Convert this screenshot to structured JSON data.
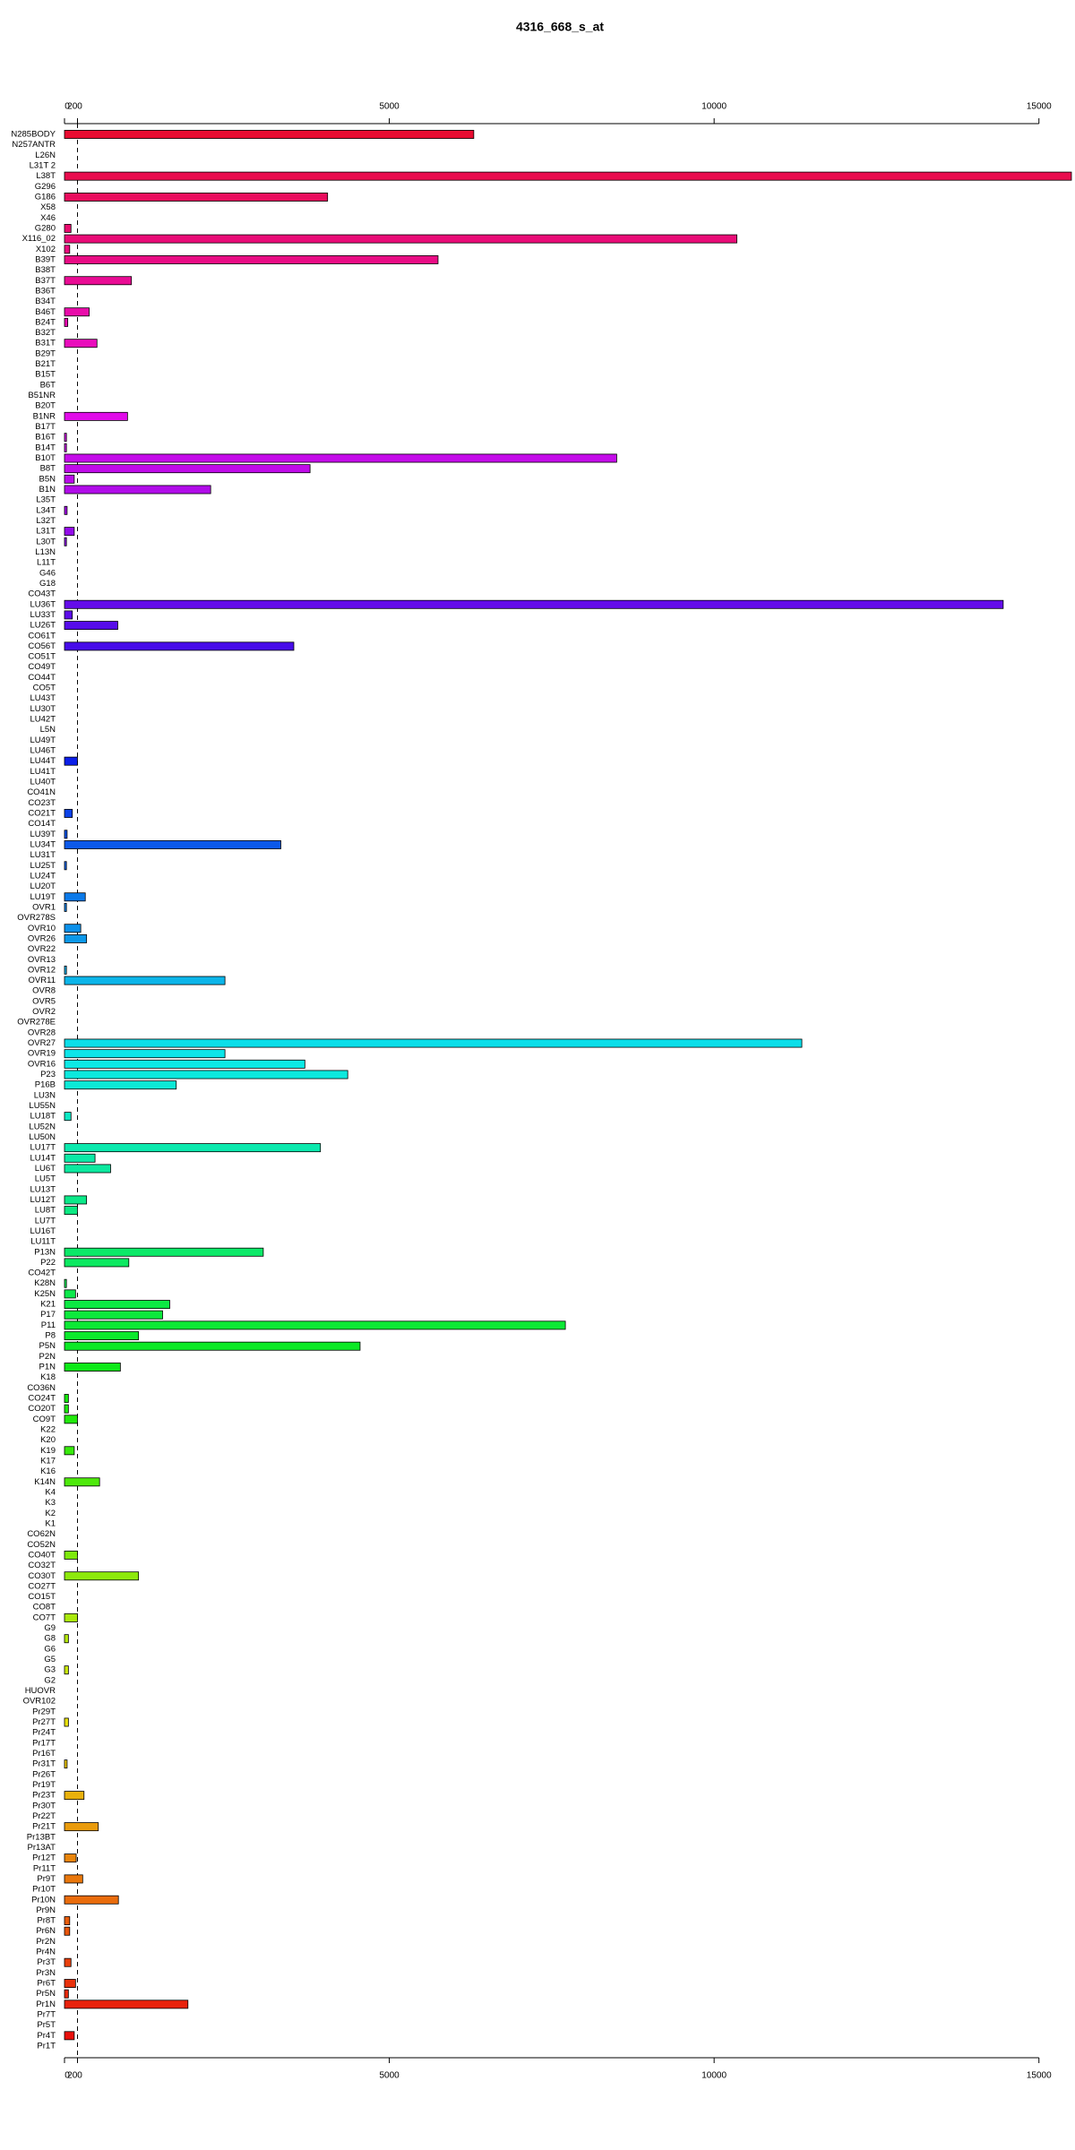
{
  "chart_data": {
    "type": "barh",
    "title": "4316_668_s_at",
    "categories": [
      "N285BODY",
      "N257ANTR",
      "L26N",
      "L31T 2",
      "L38T",
      "G296",
      "G186",
      "X58",
      "X46",
      "G280",
      "X116_02",
      "X102",
      "B39T",
      "B38T",
      "B37T",
      "B36T",
      "B34T",
      "B46T",
      "B24T",
      "B32T",
      "B31T",
      "B29T",
      "B21T",
      "B15T",
      "B6T",
      "B51NR",
      "B20T",
      "B1NR",
      "B17T",
      "B16T",
      "B14T",
      "B10T",
      "B8T",
      "B5N",
      "B1N",
      "L35T",
      "L34T",
      "L32T",
      "L31T",
      "L30T",
      "L13N",
      "L11T",
      "G46",
      "G18",
      "CO43T",
      "LU36T",
      "LU33T",
      "LU26T",
      "CO61T",
      "CO56T",
      "CO51T",
      "CO49T",
      "CO44T",
      "CO5T",
      "LU43T",
      "LU30T",
      "LU42T",
      "L5N",
      "LU49T",
      "LU46T",
      "LU44T",
      "LU41T",
      "LU40T",
      "CO41N",
      "CO23T",
      "CO21T",
      "CO14T",
      "LU39T",
      "LU34T",
      "LU31T",
      "LU25T",
      "LU24T",
      "LU20T",
      "LU19T",
      "OVR1",
      "OVR278S",
      "OVR10",
      "OVR26",
      "OVR22",
      "OVR13",
      "OVR12",
      "OVR11",
      "OVR8",
      "OVR5",
      "OVR2",
      "OVR278E",
      "OVR28",
      "OVR27",
      "OVR19",
      "OVR16",
      "P23",
      "P16B",
      "LU3N",
      "LU55N",
      "LU18T",
      "LU52N",
      "LU50N",
      "LU17T",
      "LU14T",
      "LU6T",
      "LU5T",
      "LU13T",
      "LU12T",
      "LU8T",
      "LU7T",
      "LU16T",
      "LU11T",
      "P13N",
      "P22",
      "CO42T",
      "K28N",
      "K25N",
      "K21",
      "P17",
      "P11",
      "P8",
      "P5N",
      "P2N",
      "P1N",
      "K18",
      "CO36N",
      "CO24T",
      "CO20T",
      "CO9T",
      "K22",
      "K20",
      "K19",
      "K17",
      "K16",
      "K14N",
      "K4",
      "K3",
      "K2",
      "K1",
      "CO62N",
      "CO52N",
      "CO40T",
      "CO32T",
      "CO30T",
      "CO27T",
      "CO15T",
      "CO8T",
      "CO7T",
      "G9",
      "G8",
      "G6",
      "G5",
      "G3",
      "G2",
      "HUOVR",
      "OVR102",
      "Pr29T",
      "Pr27T",
      "Pr24T",
      "Pr17T",
      "Pr16T",
      "Pr31T",
      "Pr26T",
      "Pr19T",
      "Pr23T",
      "Pr30T",
      "Pr22T",
      "Pr21T",
      "Pr13BT",
      "Pr13AT",
      "Pr12T",
      "Pr11T",
      "Pr9T",
      "Pr10T",
      "Pr10N",
      "Pr9N",
      "Pr8T",
      "Pr6N",
      "Pr2N",
      "Pr4N",
      "Pr3T",
      "Pr3N",
      "Pr6T",
      "Pr5N",
      "Pr1N",
      "Pr7T",
      "Pr5T",
      "Pr4T",
      "Pr1T"
    ],
    "values": [
      6300,
      0,
      0,
      0,
      15500,
      0,
      4050,
      0,
      0,
      100,
      10350,
      80,
      5750,
      0,
      1030,
      0,
      0,
      380,
      50,
      0,
      500,
      0,
      0,
      0,
      0,
      0,
      0,
      970,
      0,
      30,
      30,
      8500,
      3780,
      150,
      2250,
      0,
      40,
      0,
      150,
      30,
      0,
      0,
      0,
      0,
      0,
      14450,
      120,
      820,
      0,
      3530,
      0,
      0,
      0,
      0,
      0,
      0,
      0,
      0,
      0,
      0,
      200,
      0,
      0,
      0,
      0,
      120,
      0,
      40,
      3330,
      0,
      30,
      0,
      0,
      320,
      30,
      0,
      250,
      340,
      0,
      0,
      30,
      2470,
      0,
      0,
      0,
      0,
      0,
      11350,
      2470,
      3700,
      4360,
      1720,
      0,
      0,
      100,
      0,
      0,
      3940,
      470,
      710,
      0,
      0,
      340,
      200,
      0,
      0,
      0,
      3060,
      990,
      0,
      30,
      170,
      1620,
      1510,
      7710,
      1140,
      4550,
      0,
      860,
      0,
      0,
      60,
      60,
      200,
      0,
      0,
      150,
      0,
      0,
      540,
      0,
      0,
      0,
      0,
      0,
      0,
      200,
      0,
      1140,
      0,
      0,
      0,
      200,
      0,
      60,
      0,
      0,
      60,
      0,
      0,
      0,
      0,
      60,
      0,
      0,
      0,
      40,
      0,
      0,
      300,
      0,
      0,
      520,
      0,
      0,
      180,
      0,
      280,
      0,
      830,
      0,
      80,
      80,
      0,
      0,
      100,
      0,
      170,
      60,
      1900,
      0,
      0,
      150,
      0
    ],
    "colors": [
      "hsl(350,90%,48%)",
      "hsl(348,90%,48%)",
      "hsl(346,90%,48%)",
      "hsl(344,90%,48%)",
      "hsl(342,90%,48%)",
      "hsl(340,90%,48%)",
      "hsl(338,90%,48%)",
      "hsl(337,90%,48%)",
      "hsl(335,90%,48%)",
      "hsl(333,90%,48%)",
      "hsl(331,90%,48%)",
      "hsl(329,90%,48%)",
      "hsl(327,90%,48%)",
      "hsl(325,90%,48%)",
      "hsl(323,90%,48%)",
      "hsl(321,90%,48%)",
      "hsl(319,90%,48%)",
      "hsl(317,90%,48%)",
      "hsl(315,90%,48%)",
      "hsl(314,90%,48%)",
      "hsl(312,90%,48%)",
      "hsl(310,90%,48%)",
      "hsl(308,90%,48%)",
      "hsl(306,90%,48%)",
      "hsl(304,90%,48%)",
      "hsl(302,90%,48%)",
      "hsl(300,90%,48%)",
      "hsl(298,90%,48%)",
      "hsl(296,90%,48%)",
      "hsl(294,90%,48%)",
      "hsl(292,90%,48%)",
      "hsl(290,90%,48%)",
      "hsl(289,90%,48%)",
      "hsl(287,90%,48%)",
      "hsl(285,90%,48%)",
      "hsl(283,90%,48%)",
      "hsl(281,90%,48%)",
      "hsl(279,90%,48%)",
      "hsl(277,90%,48%)",
      "hsl(275,90%,48%)",
      "hsl(273,90%,48%)",
      "hsl(271,90%,48%)",
      "hsl(269,90%,48%)",
      "hsl(267,90%,48%)",
      "hsl(266,90%,48%)",
      "hsl(264,90%,48%)",
      "hsl(262,90%,48%)",
      "hsl(260,90%,48%)",
      "hsl(258,90%,48%)",
      "hsl(256,90%,48%)",
      "hsl(254,90%,48%)",
      "hsl(252,90%,48%)",
      "hsl(250,90%,48%)",
      "hsl(248,90%,48%)",
      "hsl(246,90%,48%)",
      "hsl(244,90%,48%)",
      "hsl(242,90%,48%)",
      "hsl(241,90%,48%)",
      "hsl(239,90%,48%)",
      "hsl(237,90%,48%)",
      "hsl(235,90%,48%)",
      "hsl(233,90%,48%)",
      "hsl(231,90%,48%)",
      "hsl(229,90%,48%)",
      "hsl(227,90%,48%)",
      "hsl(225,90%,48%)",
      "hsl(223,90%,48%)",
      "hsl(221,90%,48%)",
      "hsl(219,90%,48%)",
      "hsl(218,90%,48%)",
      "hsl(216,90%,48%)",
      "hsl(214,90%,48%)",
      "hsl(212,90%,48%)",
      "hsl(210,90%,48%)",
      "hsl(208,90%,48%)",
      "hsl(206,90%,48%)",
      "hsl(204,90%,48%)",
      "hsl(202,90%,48%)",
      "hsl(200,90%,48%)",
      "hsl(198,90%,48%)",
      "hsl(196,90%,48%)",
      "hsl(194,90%,48%)",
      "hsl(193,90%,48%)",
      "hsl(191,90%,48%)",
      "hsl(189,90%,48%)",
      "hsl(187,90%,48%)",
      "hsl(185,90%,48%)",
      "hsl(183,90%,48%)",
      "hsl(181,90%,48%)",
      "hsl(179,90%,48%)",
      "hsl(177,90%,48%)",
      "hsl(175,90%,48%)",
      "hsl(173,90%,48%)",
      "hsl(171,90%,48%)",
      "hsl(170,90%,48%)",
      "hsl(168,90%,48%)",
      "hsl(166,90%,48%)",
      "hsl(164,90%,48%)",
      "hsl(162,90%,48%)",
      "hsl(160,90%,48%)",
      "hsl(158,90%,48%)",
      "hsl(156,90%,48%)",
      "hsl(154,90%,48%)",
      "hsl(152,90%,48%)",
      "hsl(150,90%,48%)",
      "hsl(148,90%,48%)",
      "hsl(146,90%,48%)",
      "hsl(145,90%,48%)",
      "hsl(143,90%,48%)",
      "hsl(141,90%,48%)",
      "hsl(139,90%,48%)",
      "hsl(137,90%,48%)",
      "hsl(135,90%,48%)",
      "hsl(133,90%,48%)",
      "hsl(131,90%,48%)",
      "hsl(129,90%,48%)",
      "hsl(127,90%,48%)",
      "hsl(125,90%,48%)",
      "hsl(123,90%,48%)",
      "hsl(122,90%,48%)",
      "hsl(120,90%,48%)",
      "hsl(118,90%,48%)",
      "hsl(116,90%,48%)",
      "hsl(114,90%,48%)",
      "hsl(112,90%,48%)",
      "hsl(110,90%,48%)",
      "hsl(108,90%,48%)",
      "hsl(106,90%,48%)",
      "hsl(104,90%,48%)",
      "hsl(102,90%,48%)",
      "hsl(100,90%,48%)",
      "hsl(98,90%,48%)",
      "hsl(97,90%,48%)",
      "hsl(95,90%,48%)",
      "hsl(93,90%,48%)",
      "hsl(91,90%,48%)",
      "hsl(89,90%,48%)",
      "hsl(87,90%,48%)",
      "hsl(85,90%,48%)",
      "hsl(83,90%,48%)",
      "hsl(81,90%,48%)",
      "hsl(79,90%,48%)",
      "hsl(77,90%,48%)",
      "hsl(75,90%,48%)",
      "hsl(74,90%,48%)",
      "hsl(72,90%,48%)",
      "hsl(70,90%,48%)",
      "hsl(68,90%,48%)",
      "hsl(66,90%,48%)",
      "hsl(64,90%,48%)",
      "hsl(62,90%,48%)",
      "hsl(60,90%,48%)",
      "hsl(58,90%,48%)",
      "hsl(56,90%,48%)",
      "hsl(54,90%,48%)",
      "hsl(52,90%,48%)",
      "hsl(50,90%,48%)",
      "hsl(49,90%,48%)",
      "hsl(47,90%,48%)",
      "hsl(45,90%,48%)",
      "hsl(43,90%,48%)",
      "hsl(41,90%,48%)",
      "hsl(39,90%,48%)",
      "hsl(37,90%,48%)",
      "hsl(35,90%,48%)",
      "hsl(33,90%,48%)",
      "hsl(31,90%,48%)",
      "hsl(29,90%,48%)",
      "hsl(27,90%,48%)",
      "hsl(26,90%,48%)",
      "hsl(24,90%,48%)",
      "hsl(22,90%,48%)",
      "hsl(20,90%,48%)",
      "hsl(18,90%,48%)",
      "hsl(16,90%,48%)",
      "hsl(14,90%,48%)",
      "hsl(12,90%,48%)",
      "hsl(10,90%,48%)",
      "hsl(8,90%,48%)",
      "hsl(6,90%,48%)",
      "hsl(4,90%,48%)",
      "hsl(2,90%,48%)",
      "hsl(1,90%,48%)",
      "hsl(359,90%,48%)"
    ],
    "xlim": [
      0,
      15500
    ],
    "xticks": [
      0,
      200,
      5000,
      10000,
      15000
    ]
  }
}
